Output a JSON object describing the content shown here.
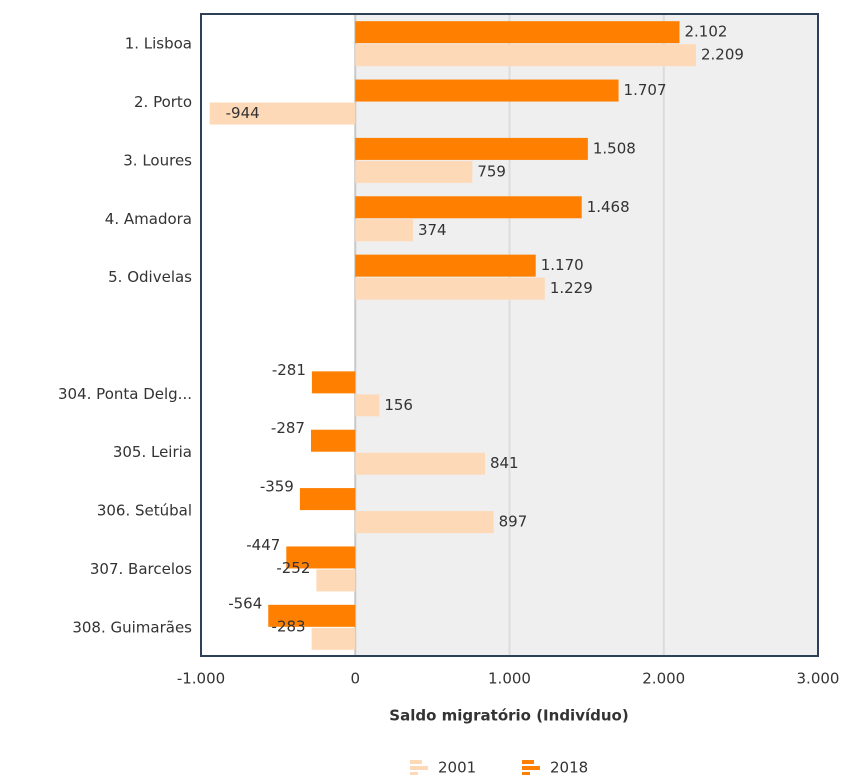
{
  "chart_data": {
    "type": "bar",
    "orientation": "horizontal",
    "x_label": "Saldo migratório (Indivíduo)",
    "categories": [
      "1. Lisboa",
      "2. Porto",
      "3. Loures",
      "4. Amadora",
      "5. Odivelas",
      null,
      "304. Ponta Delg...",
      "305. Leiria",
      "306. Setúbal",
      "307. Barcelos",
      "308. Guimarães"
    ],
    "series": [
      {
        "name": "2018",
        "color": "#ff7f00",
        "values": [
          2102,
          1707,
          1508,
          1468,
          1170,
          null,
          -281,
          -287,
          -359,
          -447,
          -564
        ],
        "value_labels": [
          "2.102",
          "1.707",
          "1.508",
          "1.468",
          "1.170",
          null,
          "-281",
          "-287",
          "-359",
          "-447",
          "-564"
        ]
      },
      {
        "name": "2001",
        "color": "#fdd9b8",
        "values": [
          2209,
          -944,
          759,
          374,
          1229,
          null,
          156,
          841,
          897,
          -252,
          -283
        ],
        "value_labels": [
          "2.209",
          "-944",
          "759",
          "374",
          "1.229",
          null,
          "156",
          "841",
          "897",
          "-252",
          "-283"
        ]
      }
    ],
    "xlim": [
      -1000,
      3000
    ],
    "xticks": [
      {
        "value": -1000,
        "label": "-1.000"
      },
      0,
      {
        "value": 1000,
        "label": "1.000"
      },
      {
        "value": 2000,
        "label": "2.000"
      },
      {
        "value": 3000,
        "label": "3.000"
      }
    ],
    "grid": true,
    "legend": "bottom"
  }
}
